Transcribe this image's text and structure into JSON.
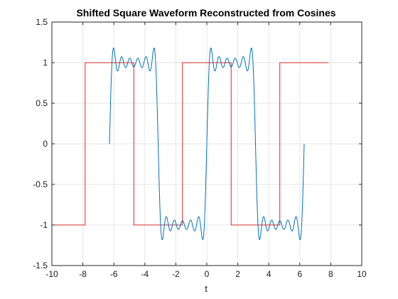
{
  "chart_data": {
    "type": "line",
    "title": "Shifted Square Waveform Reconstructed from Cosines",
    "xlabel": "t",
    "ylabel": "",
    "xlim": [
      -10,
      10
    ],
    "ylim": [
      -1.5,
      1.5
    ],
    "x_ticks": [
      -10,
      -8,
      -6,
      -4,
      -2,
      0,
      2,
      4,
      6,
      8,
      10
    ],
    "x_tick_labels": [
      "-10",
      "-8",
      "-6",
      "-4",
      "-2",
      "0",
      "2",
      "4",
      "6",
      "8",
      "10"
    ],
    "y_ticks": [
      -1.5,
      -1,
      -0.5,
      0,
      0.5,
      1,
      1.5
    ],
    "y_tick_labels": [
      "-1.5",
      "-1",
      "-0.5",
      "0",
      "0.5",
      "1",
      "1.5"
    ],
    "grid": true,
    "series": [
      {
        "color": "#d62728",
        "x": [
          -10,
          -7.854,
          -7.854,
          -4.712,
          -4.712,
          -1.571,
          -1.571,
          1.571,
          1.571,
          4.712,
          4.712,
          7.854
        ],
        "values": [
          -1,
          -1,
          1,
          1,
          -1,
          -1,
          1,
          1,
          -1,
          -1,
          1,
          1
        ]
      },
      {
        "color": "#0072bd",
        "x_range": [
          -6.283,
          6.283
        ],
        "period": 6.283,
        "shift": 1.571,
        "harmonics": [
          1,
          3,
          5,
          7,
          9,
          11
        ]
      }
    ]
  }
}
